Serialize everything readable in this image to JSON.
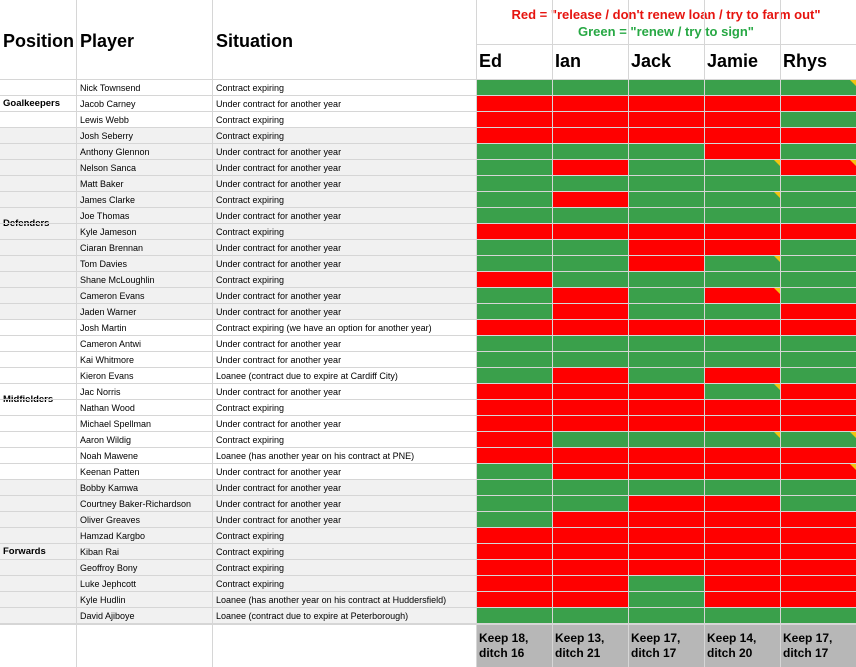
{
  "headers": {
    "position": "Position",
    "player": "Player",
    "situation": "Situation"
  },
  "legend": {
    "red": "Red = \"release / don't renew loan / try to farm out\"",
    "green": "Green = \"renew / try to sign\""
  },
  "voters": [
    "Ed",
    "Ian",
    "Jack",
    "Jamie",
    "Rhys"
  ],
  "groups": [
    {
      "name": "Goalkeepers",
      "first_row": 0,
      "rows": 3
    },
    {
      "name": "Defenders",
      "first_row": 3,
      "rows": 12
    },
    {
      "name": "Midfielders",
      "first_row": 15,
      "rows": 10
    },
    {
      "name": "Forwards",
      "first_row": 25,
      "rows": 9
    }
  ],
  "players": [
    {
      "player": "Nick Townsend",
      "situation": "Contract expiring",
      "votes": [
        "G",
        "G",
        "G",
        "G",
        "G"
      ],
      "notes": [
        false,
        false,
        false,
        false,
        true
      ]
    },
    {
      "player": "Jacob Carney",
      "situation": "Under contract for another year",
      "votes": [
        "R",
        "R",
        "R",
        "R",
        "R"
      ],
      "notes": [
        false,
        false,
        false,
        false,
        false
      ]
    },
    {
      "player": "Lewis Webb",
      "situation": "Contract expiring",
      "votes": [
        "R",
        "R",
        "R",
        "R",
        "G"
      ],
      "notes": [
        false,
        false,
        false,
        false,
        false
      ]
    },
    {
      "player": "Josh Seberry",
      "situation": "Contract expiring",
      "votes": [
        "R",
        "R",
        "R",
        "R",
        "R"
      ],
      "notes": [
        false,
        false,
        false,
        false,
        false
      ]
    },
    {
      "player": "Anthony Glennon",
      "situation": "Under contract for another year",
      "votes": [
        "G",
        "G",
        "G",
        "R",
        "G"
      ],
      "notes": [
        false,
        false,
        false,
        false,
        false
      ]
    },
    {
      "player": "Nelson Sanca",
      "situation": "Under contract for another year",
      "votes": [
        "G",
        "R",
        "G",
        "G",
        "R"
      ],
      "notes": [
        false,
        false,
        false,
        true,
        true
      ]
    },
    {
      "player": "Matt Baker",
      "situation": "Under contract for another year",
      "votes": [
        "G",
        "G",
        "G",
        "G",
        "G"
      ],
      "notes": [
        false,
        false,
        false,
        false,
        false
      ]
    },
    {
      "player": "James Clarke",
      "situation": "Contract expiring",
      "votes": [
        "G",
        "R",
        "G",
        "G",
        "G"
      ],
      "notes": [
        false,
        false,
        false,
        true,
        false
      ]
    },
    {
      "player": "Joe Thomas",
      "situation": "Under contract for another year",
      "votes": [
        "G",
        "G",
        "G",
        "G",
        "G"
      ],
      "notes": [
        false,
        false,
        false,
        false,
        false
      ]
    },
    {
      "player": "Kyle Jameson",
      "situation": "Contract expiring",
      "votes": [
        "R",
        "R",
        "R",
        "R",
        "R"
      ],
      "notes": [
        false,
        false,
        false,
        false,
        false
      ]
    },
    {
      "player": "Ciaran Brennan",
      "situation": "Under contract for another year",
      "votes": [
        "G",
        "G",
        "R",
        "R",
        "G"
      ],
      "notes": [
        false,
        false,
        false,
        false,
        false
      ]
    },
    {
      "player": "Tom Davies",
      "situation": "Under contract for another year",
      "votes": [
        "G",
        "G",
        "R",
        "G",
        "G"
      ],
      "notes": [
        false,
        false,
        false,
        true,
        false
      ]
    },
    {
      "player": "Shane McLoughlin",
      "situation": "Contract expiring",
      "votes": [
        "R",
        "G",
        "G",
        "G",
        "G"
      ],
      "notes": [
        false,
        false,
        false,
        false,
        false
      ]
    },
    {
      "player": "Cameron Evans",
      "situation": "Under contract for another year",
      "votes": [
        "G",
        "R",
        "G",
        "R",
        "G"
      ],
      "notes": [
        false,
        false,
        false,
        true,
        false
      ]
    },
    {
      "player": "Jaden Warner",
      "situation": "Under contract for another year",
      "votes": [
        "G",
        "R",
        "G",
        "G",
        "R"
      ],
      "notes": [
        false,
        false,
        false,
        false,
        false
      ]
    },
    {
      "player": "Josh Martin",
      "situation": "Contract expiring (we have an option for another year)",
      "votes": [
        "R",
        "R",
        "R",
        "R",
        "R"
      ],
      "notes": [
        false,
        false,
        false,
        false,
        false
      ]
    },
    {
      "player": "Cameron Antwi",
      "situation": "Under contract for another year",
      "votes": [
        "G",
        "G",
        "G",
        "G",
        "G"
      ],
      "notes": [
        false,
        false,
        false,
        false,
        false
      ]
    },
    {
      "player": "Kai Whitmore",
      "situation": "Under contract for another year",
      "votes": [
        "G",
        "G",
        "G",
        "G",
        "G"
      ],
      "notes": [
        false,
        false,
        false,
        false,
        false
      ]
    },
    {
      "player": "Kieron Evans",
      "situation": "Loanee (contract due to expire at Cardiff City)",
      "votes": [
        "G",
        "R",
        "G",
        "R",
        "G"
      ],
      "notes": [
        false,
        false,
        false,
        false,
        false
      ]
    },
    {
      "player": "Jac Norris",
      "situation": "Under contract for another year",
      "votes": [
        "R",
        "R",
        "R",
        "G",
        "R"
      ],
      "notes": [
        false,
        false,
        false,
        true,
        false
      ]
    },
    {
      "player": "Nathan Wood",
      "situation": "Contract expiring",
      "votes": [
        "R",
        "R",
        "R",
        "R",
        "R"
      ],
      "notes": [
        false,
        false,
        false,
        false,
        false
      ]
    },
    {
      "player": "Michael Spellman",
      "situation": "Under contract for another year",
      "votes": [
        "R",
        "R",
        "R",
        "R",
        "R"
      ],
      "notes": [
        false,
        false,
        false,
        false,
        false
      ]
    },
    {
      "player": "Aaron Wildig",
      "situation": "Contract expiring",
      "votes": [
        "R",
        "G",
        "G",
        "G",
        "G"
      ],
      "notes": [
        false,
        false,
        false,
        true,
        true
      ]
    },
    {
      "player": "Noah Mawene",
      "situation": "Loanee (has another year on his contract at PNE)",
      "votes": [
        "R",
        "R",
        "R",
        "R",
        "R"
      ],
      "notes": [
        false,
        false,
        false,
        false,
        false
      ]
    },
    {
      "player": "Keenan Patten",
      "situation": "Under contract for another year",
      "votes": [
        "G",
        "R",
        "R",
        "R",
        "R"
      ],
      "notes": [
        false,
        false,
        false,
        false,
        true
      ]
    },
    {
      "player": "Bobby Kamwa",
      "situation": "Under contract for another year",
      "votes": [
        "G",
        "G",
        "G",
        "G",
        "G"
      ],
      "notes": [
        false,
        false,
        false,
        false,
        false
      ]
    },
    {
      "player": "Courtney Baker-Richardson",
      "situation": "Under contract for another year",
      "votes": [
        "G",
        "G",
        "R",
        "R",
        "G"
      ],
      "notes": [
        false,
        false,
        false,
        false,
        false
      ]
    },
    {
      "player": "Oliver Greaves",
      "situation": "Under contract for another year",
      "votes": [
        "G",
        "R",
        "R",
        "R",
        "R"
      ],
      "notes": [
        false,
        false,
        false,
        false,
        false
      ]
    },
    {
      "player": "Hamzad Kargbo",
      "situation": "Contract expiring",
      "votes": [
        "R",
        "R",
        "R",
        "R",
        "R"
      ],
      "notes": [
        false,
        false,
        false,
        false,
        false
      ]
    },
    {
      "player": "Kiban Rai",
      "situation": "Contract expiring",
      "votes": [
        "R",
        "R",
        "R",
        "R",
        "R"
      ],
      "notes": [
        false,
        false,
        false,
        false,
        false
      ]
    },
    {
      "player": "Geoffroy Bony",
      "situation": "Contract expiring",
      "votes": [
        "R",
        "R",
        "R",
        "R",
        "R"
      ],
      "notes": [
        false,
        false,
        false,
        false,
        false
      ]
    },
    {
      "player": "Luke Jephcott",
      "situation": "Contract expiring",
      "votes": [
        "R",
        "R",
        "G",
        "R",
        "R"
      ],
      "notes": [
        false,
        false,
        false,
        false,
        false
      ]
    },
    {
      "player": "Kyle Hudlin",
      "situation": "Loanee (has another year on his contract at Huddersfield)",
      "votes": [
        "R",
        "R",
        "G",
        "R",
        "R"
      ],
      "notes": [
        false,
        false,
        false,
        false,
        false
      ]
    },
    {
      "player": "David Ajiboye",
      "situation": "Loanee (contract due to expire at Peterborough)",
      "votes": [
        "G",
        "G",
        "G",
        "G",
        "G"
      ],
      "notes": [
        false,
        false,
        false,
        false,
        false
      ]
    }
  ],
  "totals": [
    "Keep 18,\nditch 16",
    "Keep 13,\nditch 21",
    "Keep 17,\nditch 17",
    "Keep 14,\nditch 20",
    "Keep 17,\nditch 17"
  ],
  "colors": {
    "green": "#3aa04b",
    "red": "#ff0000",
    "note_marker": "#f2c411",
    "group_bg": "#f1f1f1",
    "totals_bg": "#b7b7b7"
  }
}
